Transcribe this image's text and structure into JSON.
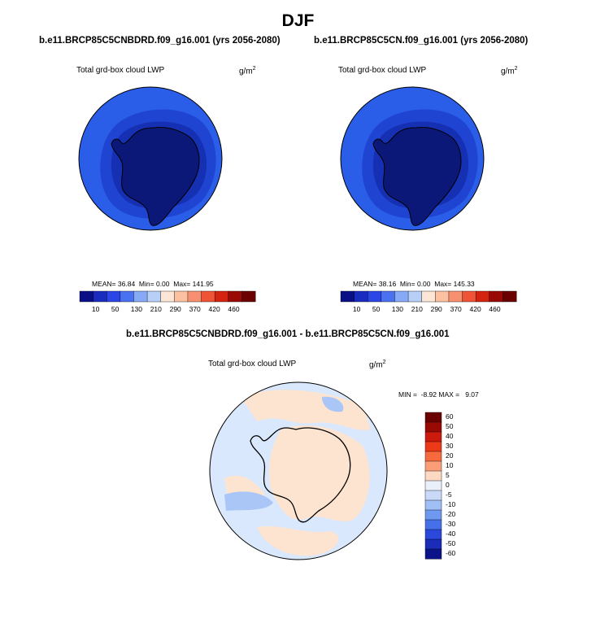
{
  "figure": {
    "title": "DJF"
  },
  "colors": {
    "cbar": [
      "#0a0f86",
      "#1a2cc0",
      "#2a46e6",
      "#4a72f0",
      "#86aaf5",
      "#b8d0f8",
      "#fde6d6",
      "#fbc1a0",
      "#f79070",
      "#ee5536",
      "#d4230e",
      "#9a0a04",
      "#6a0000"
    ],
    "diff": [
      "#6a0000",
      "#9a0a04",
      "#cc1a0c",
      "#ec3a18",
      "#f76a3e",
      "#fb9e78",
      "#fdd8c2",
      "#eaf0fa",
      "#c8daf8",
      "#9fbff5",
      "#6f98f0",
      "#4670ea",
      "#2a48dc",
      "#1a2cb8",
      "#0a1488"
    ],
    "ocean_outer": "#2a5ee8",
    "ocean_mid": "#1f44d2",
    "ocean_inner": "#1530b2",
    "land": "#0b1878",
    "diff_blue": "#d9e8fc",
    "diff_orange": "#fde4d0",
    "diff_darkblue": "#a9c6f6"
  },
  "panels": [
    {
      "title": "b.e11.BRCP85C5CNBDRD.f09_g16.001 (yrs 2056-2080)",
      "field": "Total grd-box cloud LWP",
      "units": "g/m",
      "units_exp": "2",
      "mean_label": "MEAN=",
      "mean": "36.84",
      "min_label": "Min=",
      "min": "0.00",
      "max_label": "Max=",
      "max": "141.95",
      "ticks": [
        "10",
        "50",
        "130",
        "210",
        "290",
        "370",
        "420",
        "460"
      ]
    },
    {
      "title": "b.e11.BRCP85C5CN.f09_g16.001 (yrs 2056-2080)",
      "field": "Total grd-box cloud LWP",
      "units": "g/m",
      "units_exp": "2",
      "mean_label": "MEAN=",
      "mean": "38.16",
      "min_label": "Min=",
      "min": "0.00",
      "max_label": "Max=",
      "max": "145.33",
      "ticks": [
        "10",
        "50",
        "130",
        "210",
        "290",
        "370",
        "420",
        "460"
      ]
    }
  ],
  "diff_panel": {
    "title": "b.e11.BRCP85C5CNBDRD.f09_g16.001 - b.e11.BRCP85C5CN.f09_g16.001",
    "field": "Total grd-box cloud LWP",
    "units": "g/m",
    "units_exp": "2",
    "minmax": "MIN =  -8.92 MAX =   9.07",
    "ticks": [
      "60",
      "50",
      "40",
      "30",
      "20",
      "10",
      "5",
      "0",
      "-5",
      "-10",
      "-20",
      "-30",
      "-40",
      "-50",
      "-60"
    ]
  }
}
